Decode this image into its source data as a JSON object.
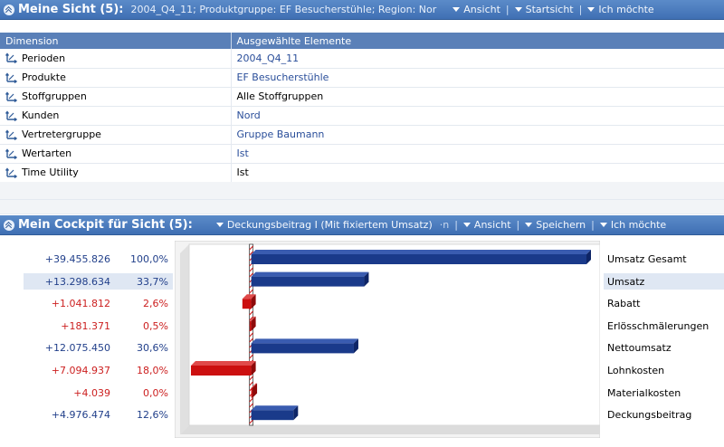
{
  "sicht": {
    "title": "Meine Sicht (5):",
    "subtitle": "2004_Q4_11; Produktgruppe: EF Besucherstühle; Region: Nor",
    "menu": [
      "Ansicht",
      "Startsicht",
      "Ich möchte"
    ]
  },
  "dimension_table": {
    "headers": [
      "Dimension",
      "Ausgewählte Elemente"
    ],
    "rows": [
      {
        "dimension": "Perioden",
        "value": "2004_Q4_11",
        "link": true
      },
      {
        "dimension": "Produkte",
        "value": "EF Besucherstühle",
        "link": true
      },
      {
        "dimension": "Stoffgruppen",
        "value": "Alle Stoffgruppen",
        "link": false
      },
      {
        "dimension": "Kunden",
        "value": "Nord",
        "link": true
      },
      {
        "dimension": "Vertretergruppe",
        "value": "Gruppe Baumann",
        "link": true
      },
      {
        "dimension": "Wertarten",
        "value": "Ist",
        "link": true
      },
      {
        "dimension": "Time Utility",
        "value": "Ist",
        "link": false
      }
    ]
  },
  "cockpit": {
    "title": "Mein Cockpit für Sicht (5):",
    "dropdown": "Deckungsbeitrag I (Mit fixiertem Umsatz)",
    "dropdown_suffix": "·n",
    "menu": [
      "Ansicht",
      "Speichern",
      "Ich möchte"
    ]
  },
  "chart_data": {
    "type": "bar",
    "orientation": "horizontal",
    "categories": [
      "Umsatz Gesamt",
      "Umsatz",
      "Rabatt",
      "Erlösschmälerungen",
      "Nettoumsatz",
      "Lohnkosten",
      "Materialkosten",
      "Deckungsbeitrag"
    ],
    "abs_labels": [
      "+39.455.826",
      "+13.298.634",
      "+1.041.812",
      "+181.371",
      "+12.075.450",
      "+7.094.937",
      "+4.039",
      "+4.976.474"
    ],
    "pct_labels": [
      "100,0%",
      "33,7%",
      "2,6%",
      "0,5%",
      "30,6%",
      "18,0%",
      "0,0%",
      "12,6%"
    ],
    "values": [
      39455826,
      13298634,
      -1041812,
      -181371,
      12075450,
      -7094937,
      -4039,
      4976474
    ],
    "xlim": [
      -7094937,
      39455826
    ],
    "colors": {
      "positive": "#1a3a8a",
      "negative": "#cc1010"
    },
    "highlighted_row": 1
  }
}
